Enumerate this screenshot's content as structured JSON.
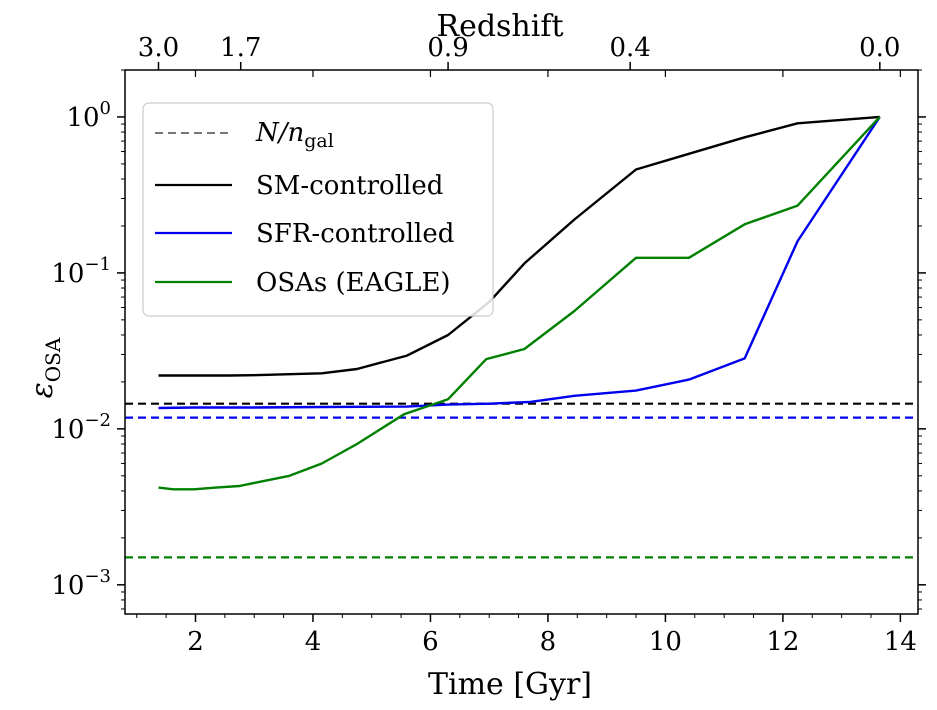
{
  "chart_data": {
    "type": "line",
    "title": "",
    "top_axis_title": "Redshift",
    "xlabel": "Time [Gyr]",
    "ylabel_main": "ε",
    "ylabel_sub": "OSA",
    "y_scale": "log",
    "xlim": [
      0.8,
      14.3
    ],
    "ylim": [
      0.00065,
      2.0
    ],
    "x_ticks": [
      2,
      4,
      6,
      8,
      10,
      12,
      14
    ],
    "x_tick_labels": [
      "2",
      "4",
      "6",
      "8",
      "10",
      "12",
      "14"
    ],
    "y_ticks": [
      0.001,
      0.01,
      0.1,
      1
    ],
    "y_tick_labels": [
      {
        "base": "10",
        "exp": "−3"
      },
      {
        "base": "10",
        "exp": "−2"
      },
      {
        "base": "10",
        "exp": "−1"
      },
      {
        "base": "10",
        "exp": "0"
      }
    ],
    "top_ticks": [
      {
        "time": 1.37,
        "label": "3.0"
      },
      {
        "time": 2.77,
        "label": "1.7"
      },
      {
        "time": 6.3,
        "label": "0.9"
      },
      {
        "time": 9.4,
        "label": "0.4"
      },
      {
        "time": 13.65,
        "label": "0.0"
      }
    ],
    "series": [
      {
        "name": "SM-controlled",
        "color": "#000000",
        "x": [
          1.37,
          1.62,
          1.97,
          2.57,
          3.0,
          3.6,
          4.15,
          4.75,
          5.6,
          6.3,
          7.0,
          7.6,
          8.45,
          9.5,
          10.4,
          11.35,
          12.25,
          13.65
        ],
        "y": [
          0.022,
          0.022,
          0.022,
          0.022,
          0.0221,
          0.0224,
          0.0227,
          0.0242,
          0.0295,
          0.04,
          0.065,
          0.115,
          0.22,
          0.46,
          0.58,
          0.74,
          0.91,
          1.0
        ]
      },
      {
        "name": "SFR-controlled",
        "color": "#0000ee",
        "x": [
          1.37,
          1.97,
          3.0,
          4.15,
          5.6,
          6.3,
          7.0,
          7.7,
          8.45,
          9.5,
          10.4,
          11.35,
          12.25,
          13.65
        ],
        "y": [
          0.0136,
          0.0137,
          0.0137,
          0.0138,
          0.0139,
          0.0143,
          0.0145,
          0.0149,
          0.0163,
          0.0176,
          0.0207,
          0.0283,
          0.16,
          1.0
        ]
      },
      {
        "name": "OSAs (EAGLE)",
        "color": "#008000",
        "x": [
          1.37,
          1.62,
          1.97,
          2.35,
          2.75,
          3.0,
          3.6,
          4.15,
          4.75,
          5.55,
          6.3,
          6.95,
          7.6,
          8.45,
          9.5,
          10.4,
          11.35,
          12.25,
          13.65
        ],
        "y": [
          0.0042,
          0.0041,
          0.0041,
          0.0042,
          0.0043,
          0.0045,
          0.005,
          0.006,
          0.008,
          0.0124,
          0.0155,
          0.028,
          0.0325,
          0.057,
          0.125,
          0.125,
          0.205,
          0.27,
          1.0
        ]
      }
    ],
    "reference_lines": [
      {
        "name": "N/n_gal (SM-controlled)",
        "y": 0.0145,
        "color": "#000000"
      },
      {
        "name": "N/n_gal (SFR-controlled)",
        "y": 0.0118,
        "color": "#0000ee"
      },
      {
        "name": "N/n_gal (OSAs)",
        "y": 0.0015,
        "color": "#008000"
      }
    ],
    "legend": {
      "position": "top-left",
      "entries": [
        {
          "label_main": "N/n",
          "label_sub": "gal",
          "style": "dashed",
          "color": "#777777"
        },
        {
          "label": "SM-controlled",
          "style": "solid",
          "color": "#000000"
        },
        {
          "label": "SFR-controlled",
          "style": "solid",
          "color": "#0000ee"
        },
        {
          "label": "OSAs (EAGLE)",
          "style": "solid",
          "color": "#008000"
        }
      ]
    }
  }
}
